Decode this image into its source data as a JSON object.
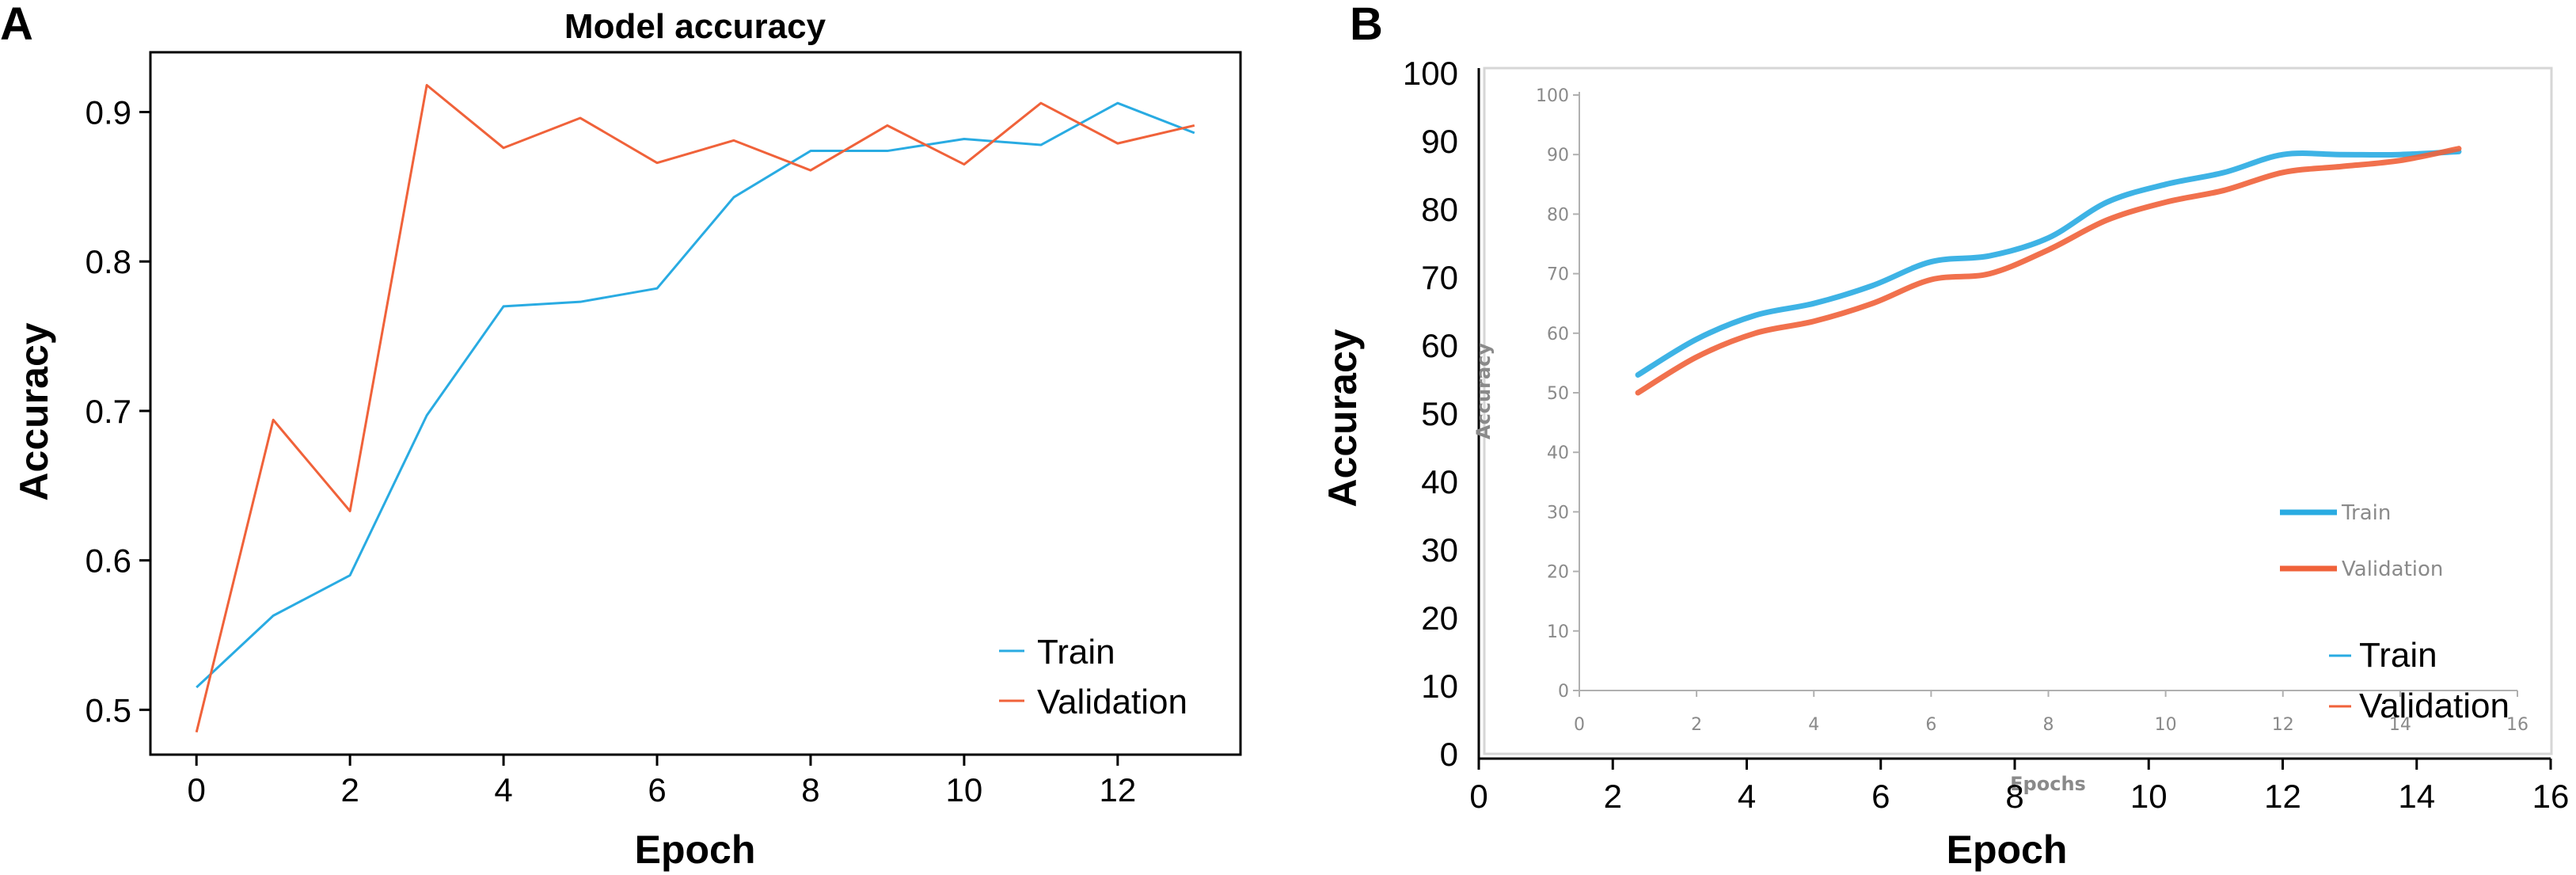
{
  "panels": {
    "a": {
      "letter": "A"
    },
    "b": {
      "letter": "B"
    }
  },
  "chart_data": [
    {
      "type": "line",
      "title": "Model accuracy",
      "xlabel": "Epoch",
      "ylabel": "Accuracy",
      "xlim": [
        -0.6,
        13.6
      ],
      "ylim": [
        0.47,
        0.94
      ],
      "xticks": [
        "0",
        "2",
        "4",
        "6",
        "8",
        "10",
        "12"
      ],
      "yticks": [
        "0.5",
        "0.6",
        "0.7",
        "0.8",
        "0.9"
      ],
      "x": [
        0,
        1,
        2,
        3,
        4,
        5,
        6,
        7,
        8,
        9,
        10,
        11,
        12,
        13
      ],
      "series": [
        {
          "name": "Train",
          "color": "#29abe2",
          "values": [
            0.515,
            0.563,
            0.59,
            0.697,
            0.77,
            0.773,
            0.782,
            0.843,
            0.874,
            0.874,
            0.882,
            0.878,
            0.906,
            0.886
          ]
        },
        {
          "name": "Validation",
          "color": "#f0623a",
          "values": [
            0.485,
            0.694,
            0.633,
            0.918,
            0.876,
            0.896,
            0.866,
            0.881,
            0.861,
            0.891,
            0.865,
            0.906,
            0.879,
            0.891
          ]
        }
      ],
      "legend_position": "bottom-right",
      "grid": false
    },
    {
      "type": "line",
      "title": "",
      "xlabel": "Epoch",
      "ylabel": "Accuracy",
      "xlim": [
        0,
        16
      ],
      "ylim": [
        0,
        100
      ],
      "xticks": [
        "0",
        "2",
        "4",
        "6",
        "8",
        "10",
        "12",
        "14",
        "16"
      ],
      "yticks": [
        "0",
        "10",
        "20",
        "30",
        "40",
        "50",
        "60",
        "70",
        "80",
        "90",
        "100"
      ],
      "x": [
        1,
        2,
        3,
        4,
        5,
        6,
        7,
        8,
        9,
        10,
        11,
        12,
        13,
        14,
        15
      ],
      "series": [
        {
          "name": "Train",
          "color": "#29abe2",
          "values": [
            53,
            59,
            63,
            65,
            68,
            72,
            73,
            76,
            82,
            85,
            87,
            90,
            90,
            90,
            90.5
          ]
        },
        {
          "name": "Validation",
          "color": "#f0623a",
          "values": [
            50,
            56,
            60,
            62,
            65,
            69,
            70,
            74,
            79,
            82,
            84,
            87,
            88,
            89,
            91
          ]
        }
      ],
      "legend_position": "bottom-right",
      "grid": false,
      "embedded_image": {
        "xlabel": "Epochs",
        "ylabel": "Accuracy",
        "xticks": [
          "0",
          "2",
          "4",
          "6",
          "8",
          "10",
          "12",
          "14",
          "16"
        ],
        "yticks": [
          "0",
          "10",
          "20",
          "30",
          "40",
          "50",
          "60",
          "70",
          "80",
          "90",
          "100"
        ],
        "legend": [
          "Train",
          "Validation"
        ]
      }
    }
  ]
}
